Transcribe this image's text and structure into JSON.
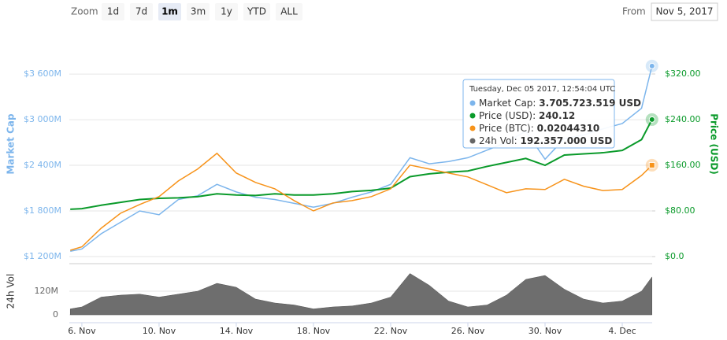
{
  "ui": {
    "zoom_label": "Zoom",
    "zoom_buttons": [
      "1d",
      "7d",
      "1m",
      "3m",
      "1y",
      "YTD",
      "ALL"
    ],
    "selected_zoom": 2,
    "from_label": "From",
    "from_value": "Nov 5, 2017"
  },
  "tooltip": {
    "title": "Tuesday, Dec 05 2017, 12:54:04 UTC",
    "rows": [
      {
        "label": "Market Cap:",
        "value": "3.705.723.519 USD",
        "color": "#7cb5ec"
      },
      {
        "label": "Price (USD):",
        "value": "240.12",
        "color": "#0a9a2a"
      },
      {
        "label": "Price (BTC):",
        "value": "0.02044310",
        "color": "#f7931a"
      },
      {
        "label": "24h Vol:",
        "value": "192.357.000 USD",
        "color": "#666666"
      }
    ]
  },
  "chart_data": {
    "type": "line",
    "x": [
      5.4,
      6,
      7,
      8,
      9,
      10,
      11,
      12,
      13,
      14,
      15,
      16,
      17,
      18,
      19,
      20,
      21,
      22,
      23,
      24,
      25,
      26,
      27,
      28,
      29,
      30,
      31,
      32,
      33,
      34,
      35,
      35.54
    ],
    "xlim": [
      5.35,
      35.55
    ],
    "xticks": [
      {
        "value": 6,
        "label": "6. Nov"
      },
      {
        "value": 10,
        "label": "10. Nov"
      },
      {
        "value": 14,
        "label": "14. Nov"
      },
      {
        "value": 18,
        "label": "18. Nov"
      },
      {
        "value": 22,
        "label": "22. Nov"
      },
      {
        "value": 26,
        "label": "26. Nov"
      },
      {
        "value": 30,
        "label": "30. Nov"
      },
      {
        "value": 34,
        "label": "4. Dec"
      }
    ],
    "y_label": "Market Cap",
    "y2_label": "Price (USD)",
    "y4_label": "24h Vol",
    "ylim": [
      1200,
      4160
    ],
    "yticks": [
      {
        "value": 1200,
        "label": "$1 200M"
      },
      {
        "value": 1800,
        "label": "$1 800M"
      },
      {
        "value": 2400,
        "label": "$2 400M"
      },
      {
        "value": 3000,
        "label": "$3 000M"
      },
      {
        "value": 3600,
        "label": "$3 600M"
      }
    ],
    "y2lim": [
      0,
      394.5
    ],
    "y2ticks": [
      {
        "value": 0,
        "label": "$0.0"
      },
      {
        "value": 80,
        "label": "$80.00"
      },
      {
        "value": 160,
        "label": "$160.00"
      },
      {
        "value": 240,
        "label": "$240.00"
      },
      {
        "value": 320,
        "label": "$320.00"
      }
    ],
    "y3lim": [
      0.012,
      0.0328
    ],
    "y4lim": [
      0,
      252
    ],
    "y4ticks": [
      0,
      {
        "value": 120,
        "label": "120M"
      }
    ],
    "grid": true,
    "series": [
      {
        "name": "Market Cap",
        "color": "#7cb5ec",
        "axis": "y",
        "values": [
          1270,
          1300,
          1500,
          1650,
          1800,
          1750,
          1950,
          2000,
          2150,
          2050,
          1980,
          1950,
          1900,
          1850,
          1900,
          1980,
          2050,
          2150,
          2500,
          2420,
          2450,
          2500,
          2600,
          2700,
          2850,
          2480,
          2750,
          2800,
          2880,
          2950,
          3150,
          3705.72
        ]
      },
      {
        "name": "Price (USD)",
        "color": "#0a9a2a",
        "axis": "y2",
        "values": [
          83,
          84,
          90,
          95,
          100,
          102,
          103,
          105,
          110,
          108,
          107,
          110,
          108,
          108,
          110,
          114,
          116,
          120,
          140,
          145,
          148,
          150,
          158,
          165,
          172,
          160,
          178,
          180,
          182,
          186,
          205,
          240.12
        ]
      },
      {
        "name": "Price (BTC)",
        "color": "#f7931a",
        "axis": "y3",
        "values": [
          0.01258,
          0.0129,
          0.01462,
          0.016,
          0.01681,
          0.01754,
          0.01899,
          0.02009,
          0.02154,
          0.01972,
          0.01885,
          0.01826,
          0.01717,
          0.01622,
          0.01695,
          0.01717,
          0.01754,
          0.01826,
          0.02045,
          0.02009,
          0.01972,
          0.01936,
          0.01863,
          0.0179,
          0.01826,
          0.0182,
          0.01914,
          0.0185,
          0.0181,
          0.0182,
          0.0195,
          0.0204431
        ]
      },
      {
        "name": "24h Vol",
        "color": "#6e6e6e",
        "axis": "y4",
        "values": [
          30,
          40,
          90,
          100,
          105,
          90,
          105,
          120,
          160,
          140,
          80,
          60,
          50,
          30,
          40,
          45,
          60,
          90,
          210,
          150,
          70,
          40,
          50,
          100,
          180,
          200,
          130,
          80,
          60,
          70,
          120,
          192.357
        ]
      }
    ]
  }
}
